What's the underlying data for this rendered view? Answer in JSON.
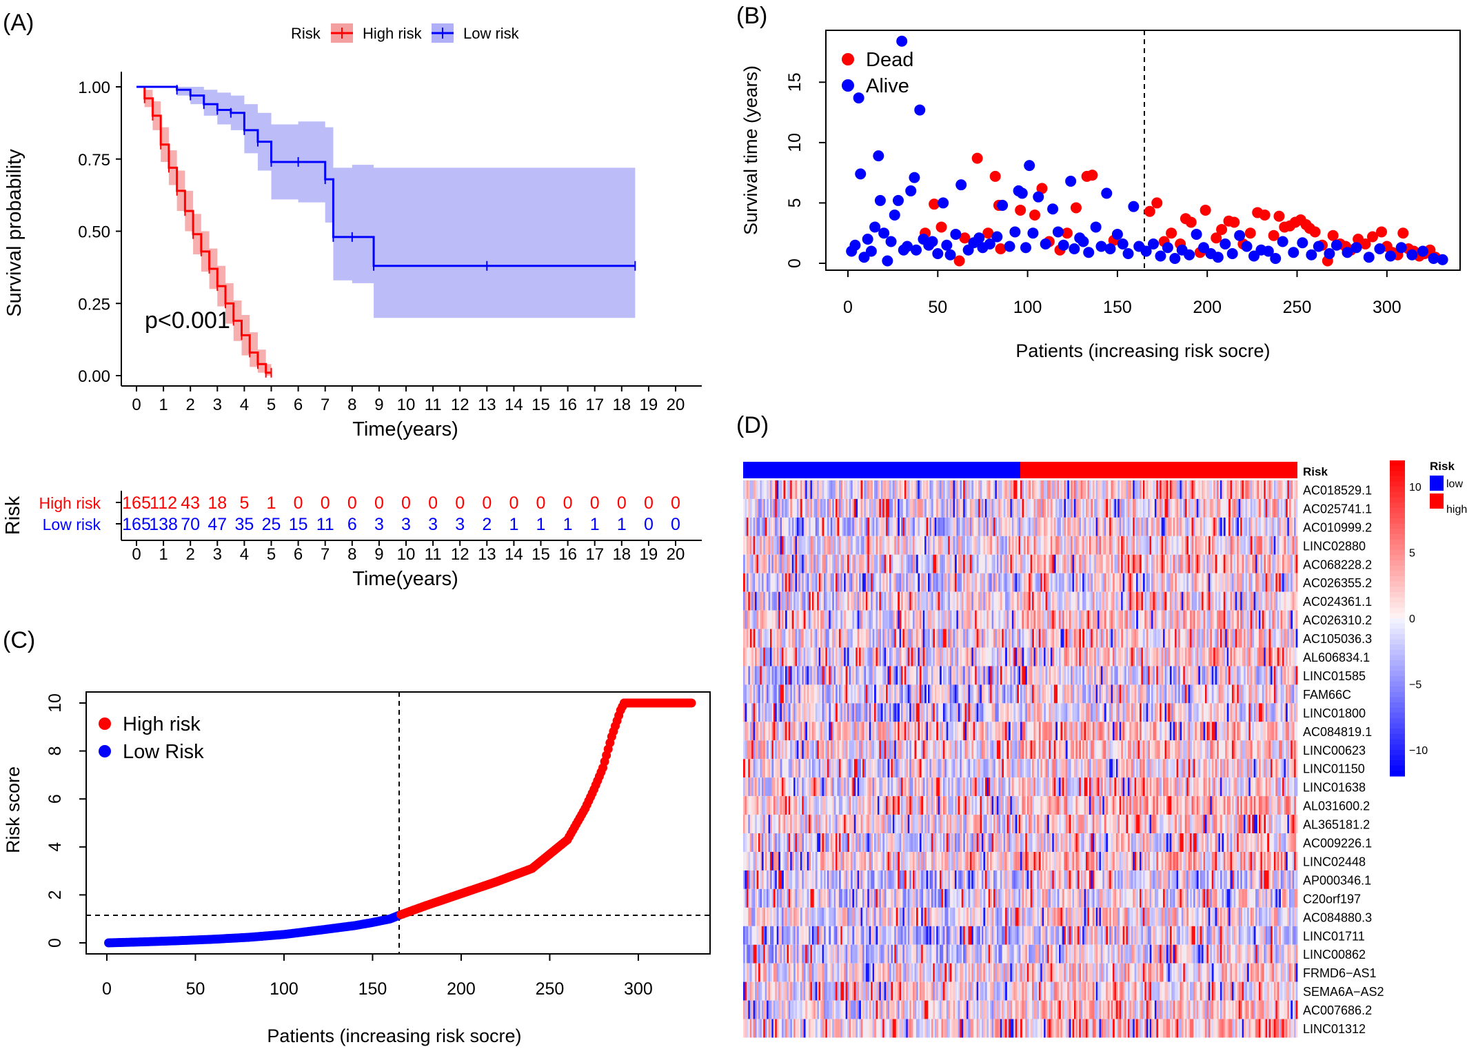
{
  "panels": {
    "A": {
      "tag": "(A)"
    },
    "B": {
      "tag": "(B)"
    },
    "C": {
      "tag": "(C)"
    },
    "D": {
      "tag": "(D)"
    }
  },
  "colors": {
    "high": "#ff0000",
    "low": "#0000ff",
    "high_ci": "#f4a0a0",
    "low_ci": "#b0b0f8"
  },
  "chart_data": [
    {
      "panel": "A",
      "type": "line",
      "title": "",
      "xlabel": "Time(years)",
      "ylabel": "Survival probability",
      "xlim": [
        0,
        20
      ],
      "ylim": [
        0,
        1
      ],
      "x_ticks": [
        0,
        1,
        2,
        3,
        4,
        5,
        6,
        7,
        8,
        9,
        10,
        11,
        12,
        13,
        14,
        15,
        16,
        17,
        18,
        19,
        20
      ],
      "y_ticks": [
        "0.00",
        "0.25",
        "0.50",
        "0.75",
        "1.00"
      ],
      "legend_title": "Risk",
      "legend": [
        "High risk",
        "Low risk"
      ],
      "annotation": "p<0.001",
      "series": [
        {
          "name": "High risk",
          "x": [
            0,
            0.3,
            0.6,
            0.9,
            1.2,
            1.5,
            1.8,
            2.1,
            2.4,
            2.7,
            3.0,
            3.3,
            3.6,
            3.9,
            4.2,
            4.5,
            4.8,
            5.0
          ],
          "y": [
            1.0,
            0.96,
            0.9,
            0.8,
            0.72,
            0.64,
            0.57,
            0.49,
            0.43,
            0.37,
            0.31,
            0.25,
            0.19,
            0.14,
            0.08,
            0.04,
            0.01,
            0.01
          ],
          "lower": [
            1.0,
            0.93,
            0.85,
            0.74,
            0.66,
            0.57,
            0.5,
            0.42,
            0.36,
            0.3,
            0.24,
            0.18,
            0.12,
            0.07,
            0.03,
            0.01,
            0.0,
            0.0
          ],
          "upper": [
            1.0,
            0.99,
            0.95,
            0.86,
            0.78,
            0.71,
            0.64,
            0.56,
            0.5,
            0.44,
            0.38,
            0.32,
            0.26,
            0.21,
            0.15,
            0.09,
            0.04,
            0.04
          ]
        },
        {
          "name": "Low risk",
          "x": [
            0,
            1.5,
            2.0,
            2.5,
            3.0,
            3.5,
            4.0,
            4.5,
            5.0,
            6.0,
            7.0,
            7.3,
            8.0,
            8.8,
            13.0,
            18.5
          ],
          "y": [
            1.0,
            0.99,
            0.97,
            0.94,
            0.92,
            0.91,
            0.85,
            0.81,
            0.74,
            0.74,
            0.68,
            0.48,
            0.48,
            0.38,
            0.38,
            0.38
          ],
          "lower": [
            1.0,
            0.97,
            0.94,
            0.9,
            0.87,
            0.85,
            0.77,
            0.71,
            0.61,
            0.6,
            0.53,
            0.33,
            0.32,
            0.2,
            0.2,
            0.2
          ],
          "upper": [
            1.0,
            1.0,
            1.0,
            0.99,
            0.98,
            0.97,
            0.94,
            0.91,
            0.87,
            0.88,
            0.86,
            0.72,
            0.73,
            0.72,
            0.72,
            0.72
          ]
        }
      ]
    },
    {
      "panel": "A-risk-table",
      "type": "table",
      "ylabel": "Risk",
      "xlabel": "Time(years)",
      "x_ticks": [
        0,
        1,
        2,
        3,
        4,
        5,
        6,
        7,
        8,
        9,
        10,
        11,
        12,
        13,
        14,
        15,
        16,
        17,
        18,
        19,
        20
      ],
      "rows": [
        {
          "name": "High risk",
          "values": [
            "165",
            "112",
            "43",
            "18",
            "5",
            "1",
            "0",
            "0",
            "0",
            "0",
            "0",
            "0",
            "0",
            "0",
            "0",
            "0",
            "0",
            "0",
            "0",
            "0",
            "0"
          ]
        },
        {
          "name": "Low risk",
          "values": [
            "165",
            "138",
            "70",
            "47",
            "35",
            "25",
            "15",
            "11",
            "6",
            "3",
            "3",
            "3",
            "3",
            "2",
            "1",
            "1",
            "1",
            "1",
            "1",
            "0",
            "0"
          ]
        }
      ]
    },
    {
      "panel": "B",
      "type": "scatter",
      "xlabel": "Patients (increasing risk socre)",
      "ylabel": "Survival time (years)",
      "xlim": [
        0,
        330
      ],
      "ylim": [
        0,
        18.5
      ],
      "x_ticks": [
        "0",
        "50",
        "100",
        "150",
        "200",
        "250",
        "300"
      ],
      "y_ticks": [
        "0",
        "5",
        "10",
        "15"
      ],
      "cutoff_x": 165,
      "legend": [
        "Dead",
        "Alive"
      ],
      "series": [
        {
          "name": "Dead",
          "points": [
            [
              43,
              2.5
            ],
            [
              48,
              4.9
            ],
            [
              52,
              3.0
            ],
            [
              62,
              0.2
            ],
            [
              65,
              2.1
            ],
            [
              72,
              8.7
            ],
            [
              78,
              2.5
            ],
            [
              82,
              7.2
            ],
            [
              84,
              4.8
            ],
            [
              85,
              1.2
            ],
            [
              96,
              4.4
            ],
            [
              104,
              4.0
            ],
            [
              108,
              6.2
            ],
            [
              112,
              1.8
            ],
            [
              118,
              1.1
            ],
            [
              122,
              2.5
            ],
            [
              127,
              4.6
            ],
            [
              133,
              7.2
            ],
            [
              136,
              7.3
            ],
            [
              148,
              1.9
            ],
            [
              168,
              4.3
            ],
            [
              172,
              5.0
            ],
            [
              176,
              1.8
            ],
            [
              180,
              2.5
            ],
            [
              185,
              1.6
            ],
            [
              188,
              3.7
            ],
            [
              191,
              3.4
            ],
            [
              196,
              0.9
            ],
            [
              199,
              4.4
            ],
            [
              205,
              2.1
            ],
            [
              208,
              2.8
            ],
            [
              212,
              3.5
            ],
            [
              215,
              3.4
            ],
            [
              220,
              1.6
            ],
            [
              224,
              2.5
            ],
            [
              228,
              4.2
            ],
            [
              232,
              4.0
            ],
            [
              237,
              2.3
            ],
            [
              240,
              3.9
            ],
            [
              243,
              3.0
            ],
            [
              246,
              3.1
            ],
            [
              249,
              3.4
            ],
            [
              252,
              3.6
            ],
            [
              255,
              3.2
            ],
            [
              257,
              2.9
            ],
            [
              260,
              2.6
            ],
            [
              264,
              1.5
            ],
            [
              267,
              0.2
            ],
            [
              270,
              2.3
            ],
            [
              274,
              1.6
            ],
            [
              277,
              1.4
            ],
            [
              280,
              1.1
            ],
            [
              284,
              2.0
            ],
            [
              288,
              1.6
            ],
            [
              292,
              2.2
            ],
            [
              297,
              2.6
            ],
            [
              300,
              1.4
            ],
            [
              303,
              0.9
            ],
            [
              306,
              0.7
            ],
            [
              309,
              2.5
            ],
            [
              312,
              1.2
            ],
            [
              315,
              1.0
            ],
            [
              318,
              0.6
            ],
            [
              321,
              0.8
            ],
            [
              324,
              1.1
            ],
            [
              327,
              0.5
            ]
          ]
        },
        {
          "name": "Alive",
          "points": [
            [
              2,
              1.0
            ],
            [
              4,
              1.5
            ],
            [
              6,
              13.7
            ],
            [
              7,
              7.4
            ],
            [
              9,
              0.5
            ],
            [
              11,
              2.0
            ],
            [
              13,
              1.0
            ],
            [
              15,
              3.0
            ],
            [
              17,
              8.9
            ],
            [
              18,
              5.2
            ],
            [
              20,
              2.5
            ],
            [
              22,
              0.2
            ],
            [
              24,
              1.8
            ],
            [
              26,
              4.0
            ],
            [
              28,
              5.2
            ],
            [
              30,
              18.4
            ],
            [
              31,
              1.1
            ],
            [
              33,
              1.4
            ],
            [
              35,
              6.0
            ],
            [
              37,
              7.1
            ],
            [
              38,
              1.1
            ],
            [
              40,
              12.7
            ],
            [
              42,
              2.0
            ],
            [
              45,
              1.5
            ],
            [
              47,
              1.8
            ],
            [
              50,
              0.8
            ],
            [
              53,
              5.0
            ],
            [
              55,
              1.5
            ],
            [
              57,
              0.7
            ],
            [
              60,
              2.4
            ],
            [
              63,
              6.5
            ],
            [
              67,
              1.1
            ],
            [
              70,
              1.7
            ],
            [
              73,
              2.1
            ],
            [
              75,
              1.3
            ],
            [
              79,
              1.6
            ],
            [
              83,
              2.2
            ],
            [
              86,
              4.8
            ],
            [
              90,
              1.4
            ],
            [
              93,
              2.6
            ],
            [
              95,
              6.0
            ],
            [
              97,
              5.8
            ],
            [
              99,
              1.3
            ],
            [
              101,
              8.1
            ],
            [
              103,
              2.5
            ],
            [
              106,
              5.5
            ],
            [
              110,
              1.6
            ],
            [
              114,
              4.5
            ],
            [
              117,
              2.6
            ],
            [
              120,
              1.5
            ],
            [
              124,
              6.8
            ],
            [
              126,
              1.2
            ],
            [
              129,
              2.1
            ],
            [
              131,
              1.8
            ],
            [
              134,
              0.9
            ],
            [
              138,
              3.0
            ],
            [
              141,
              1.4
            ],
            [
              144,
              5.8
            ],
            [
              146,
              1.2
            ],
            [
              150,
              2.4
            ],
            [
              153,
              1.6
            ],
            [
              156,
              0.8
            ],
            [
              159,
              4.7
            ],
            [
              162,
              1.4
            ],
            [
              166,
              1.0
            ],
            [
              170,
              1.6
            ],
            [
              174,
              0.6
            ],
            [
              178,
              1.3
            ],
            [
              182,
              0.4
            ],
            [
              186,
              1.1
            ],
            [
              190,
              0.7
            ],
            [
              194,
              2.4
            ],
            [
              198,
              1.3
            ],
            [
              202,
              0.8
            ],
            [
              206,
              0.5
            ],
            [
              210,
              1.6
            ],
            [
              214,
              0.8
            ],
            [
              218,
              2.3
            ],
            [
              222,
              1.4
            ],
            [
              226,
              0.6
            ],
            [
              230,
              1.1
            ],
            [
              234,
              1.0
            ],
            [
              238,
              0.4
            ],
            [
              242,
              1.8
            ],
            [
              248,
              0.9
            ],
            [
              253,
              1.7
            ],
            [
              258,
              0.7
            ],
            [
              262,
              1.4
            ],
            [
              268,
              0.8
            ],
            [
              272,
              1.5
            ],
            [
              278,
              0.9
            ],
            [
              283,
              1.3
            ],
            [
              290,
              0.5
            ],
            [
              296,
              1.2
            ],
            [
              302,
              0.6
            ],
            [
              308,
              1.3
            ],
            [
              314,
              0.7
            ],
            [
              320,
              1.0
            ],
            [
              326,
              0.4
            ],
            [
              331,
              0.3
            ]
          ]
        }
      ]
    },
    {
      "panel": "C",
      "type": "scatter",
      "xlabel": "Patients (increasing risk socre)",
      "ylabel": "Risk score",
      "xlim": [
        0,
        330
      ],
      "ylim": [
        0,
        10
      ],
      "x_ticks": [
        "0",
        "50",
        "100",
        "150",
        "200",
        "250",
        "300"
      ],
      "y_ticks": [
        "0",
        "2",
        "4",
        "6",
        "8",
        "10"
      ],
      "cutoff_x": 165,
      "cutoff_y": 1.15,
      "legend": [
        "High risk",
        "Low Risk"
      ],
      "curve": {
        "x": [
          1,
          20,
          40,
          60,
          80,
          100,
          120,
          140,
          150,
          160,
          165,
          180,
          200,
          220,
          240,
          250,
          260,
          270,
          275,
          280,
          285,
          290,
          292,
          300,
          310,
          320,
          330
        ],
        "y": [
          0.0,
          0.04,
          0.09,
          0.15,
          0.23,
          0.35,
          0.53,
          0.72,
          0.85,
          1.0,
          1.15,
          1.55,
          2.05,
          2.55,
          3.1,
          3.7,
          4.3,
          5.6,
          6.4,
          7.3,
          8.6,
          9.7,
          10.0,
          10.0,
          10.0,
          10.0,
          10.0
        ]
      }
    },
    {
      "panel": "D",
      "type": "heatmap",
      "annotation_label": "Risk",
      "annotation_groups": [
        {
          "name": "low",
          "count": 165
        },
        {
          "name": "high",
          "count": 165
        }
      ],
      "legend_title": "Risk",
      "legend_items": [
        "low",
        "high"
      ],
      "scale_ticks": [
        "10",
        "5",
        "0",
        "−5",
        "−10"
      ],
      "scale_range": [
        -12,
        12
      ],
      "genes": [
        "AC018529.1",
        "AC025741.1",
        "AC010999.2",
        "LINC02880",
        "AC068228.2",
        "AC026355.2",
        "AC024361.1",
        "AC026310.2",
        "AC105036.3",
        "AL606834.1",
        "LINC01585",
        "FAM66C",
        "LINC01800",
        "AC084819.1",
        "LINC00623",
        "LINC01150",
        "LINC01638",
        "AL031600.2",
        "AL365181.2",
        "AC009226.1",
        "LINC02448",
        "AP000346.1",
        "C20orf197",
        "AC084880.3",
        "LINC01711",
        "LINC00862",
        "FRMD6−AS1",
        "SEMA6A−AS2",
        "AC007686.2",
        "LINC01312"
      ]
    }
  ]
}
